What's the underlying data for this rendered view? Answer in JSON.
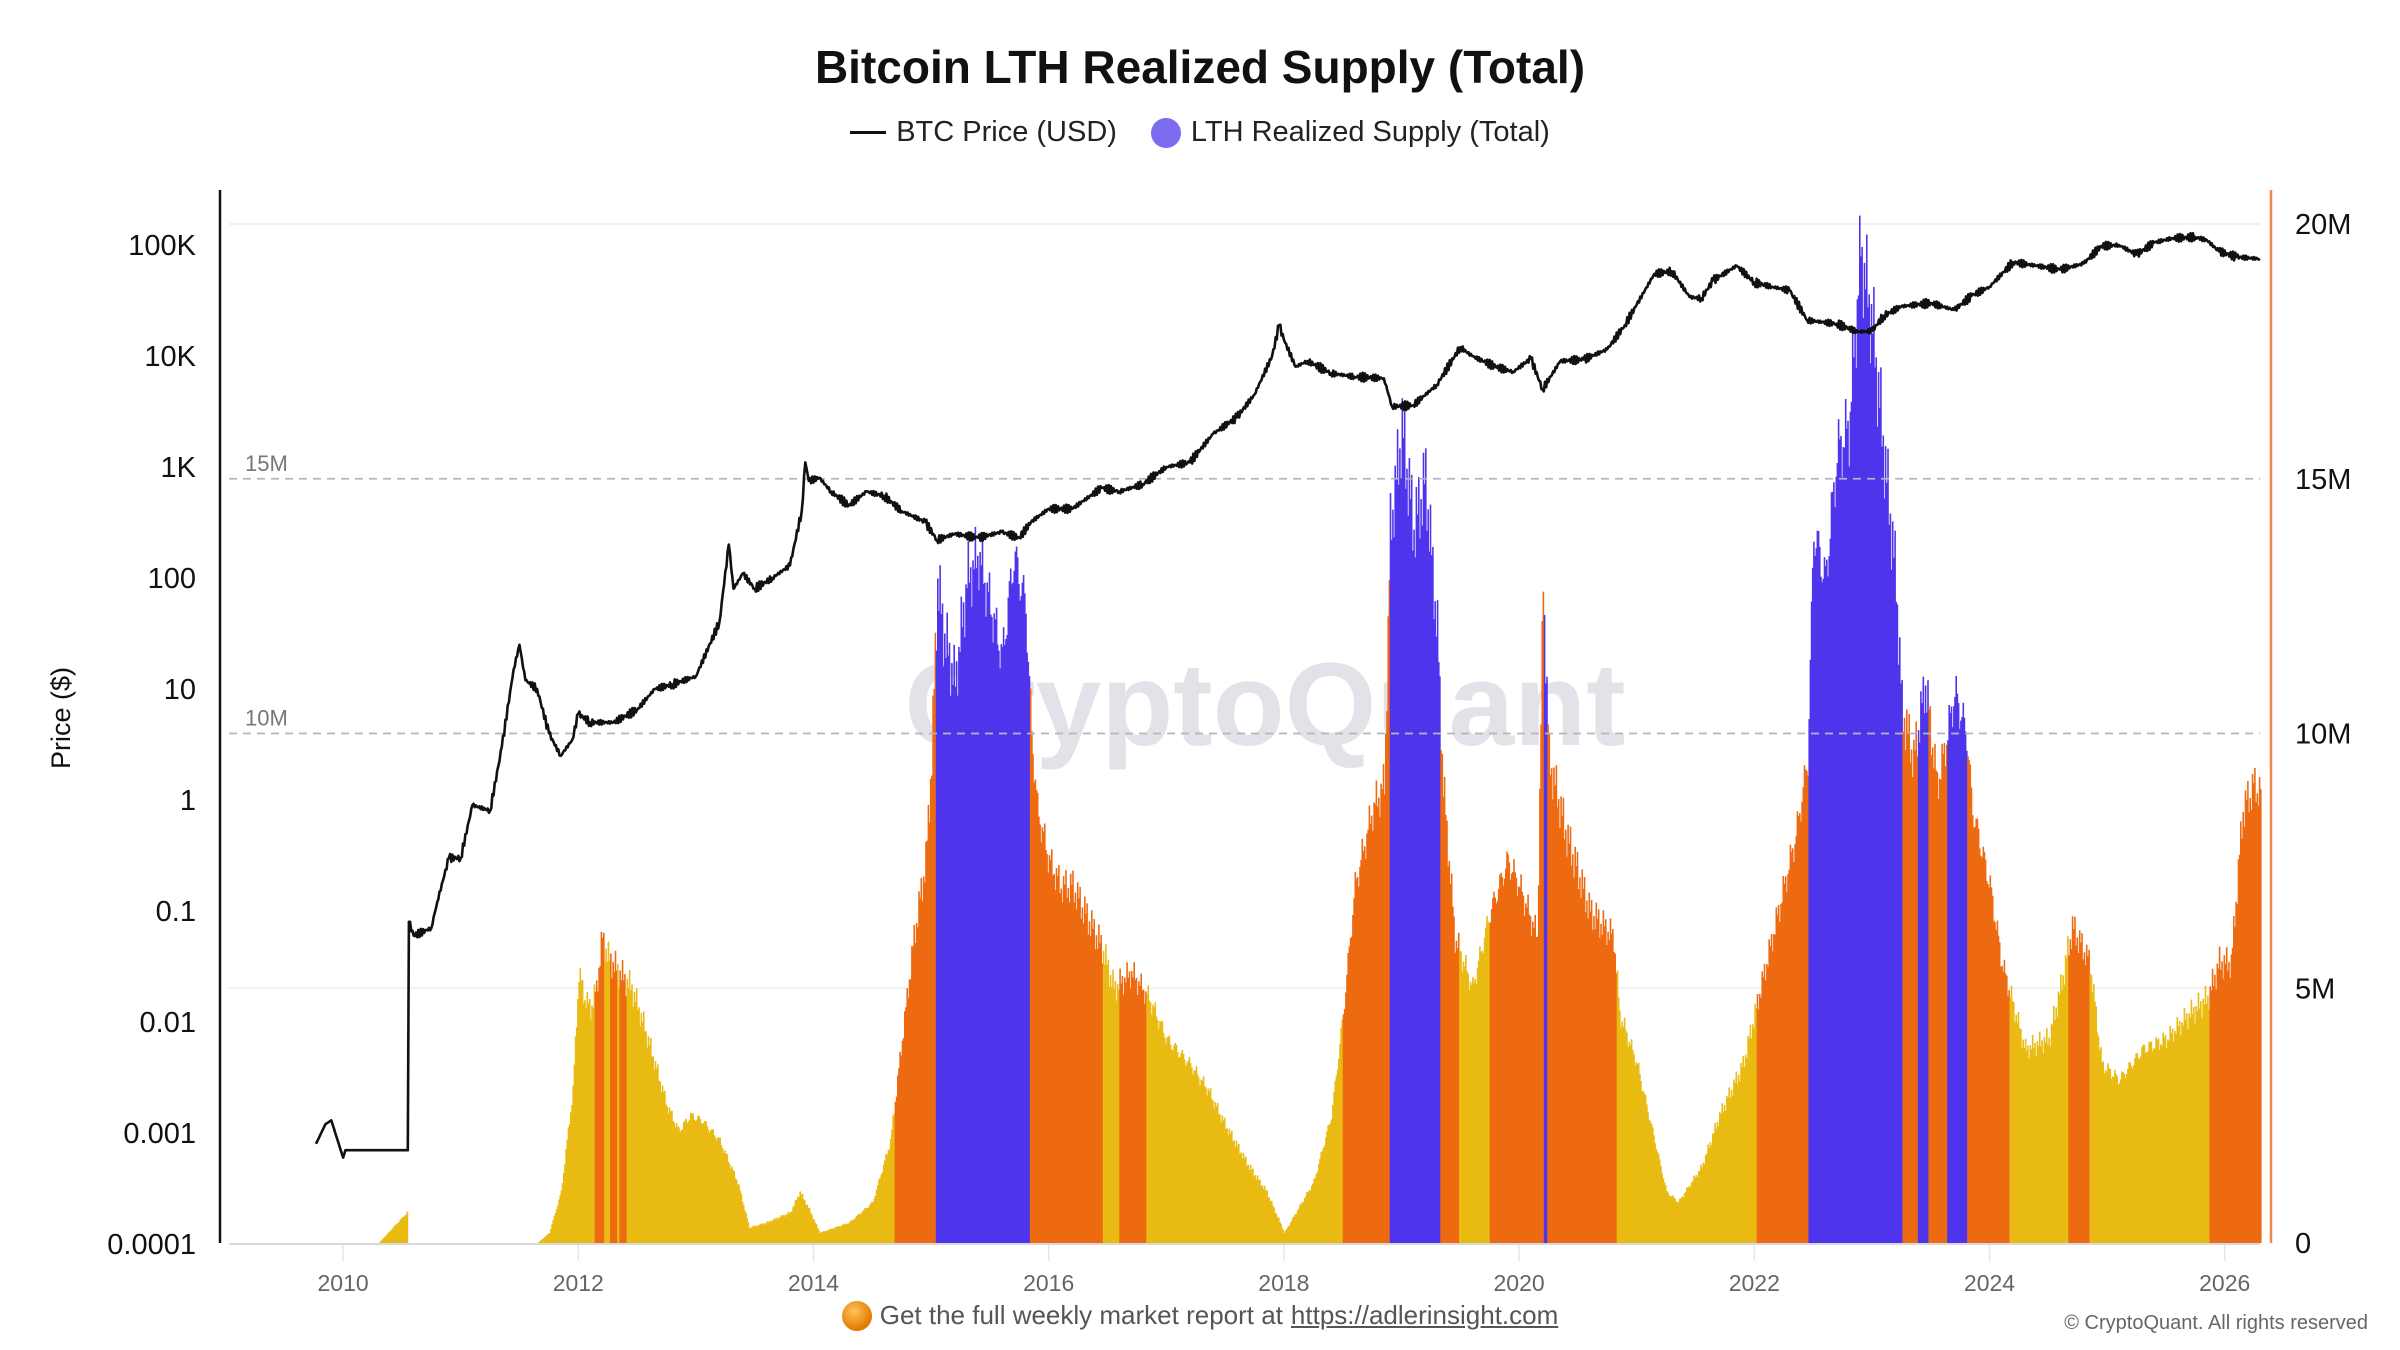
{
  "chart_data": {
    "type": "bar+line",
    "title": "Bitcoin LTH Realized Supply (Total)",
    "legend": [
      "BTC Price (USD)",
      "LTH Realized Supply (Total)"
    ],
    "legend_placement": "top-center",
    "ylabel_left": "Price ($)",
    "y_left_scale": "log",
    "y_left_ticks": [
      "0.0001",
      "0.001",
      "0.01",
      "0.1",
      "1",
      "10",
      "100",
      "1K",
      "10K",
      "100K"
    ],
    "y_left_tick_values": [
      0.0001,
      0.001,
      0.01,
      0.1,
      1,
      10,
      100,
      1000,
      10000,
      100000
    ],
    "y_right_ticks": [
      "0",
      "5M",
      "10M",
      "15M",
      "20M"
    ],
    "y_right_tick_values": [
      0,
      5,
      10,
      15,
      20
    ],
    "y_right_unit": "M",
    "ref_lines": [
      {
        "value": 15,
        "label": "15M"
      },
      {
        "value": 10,
        "label": "10M"
      }
    ],
    "x_ticks": [
      "2010",
      "2012",
      "2014",
      "2016",
      "2018",
      "2020",
      "2022",
      "2024",
      "2026"
    ],
    "x_tick_values": [
      2010,
      2012,
      2014,
      2016,
      2018,
      2020,
      2022,
      2024,
      2026
    ],
    "xlim": [
      2009.03,
      2026.3
    ],
    "grid": "horizontal",
    "colors": {
      "price": "#111111",
      "yellow": "#E9BB13",
      "orange": "#EE6A10",
      "blue": "#4E35EC",
      "right_axis": "#F08A4B"
    },
    "supply_series": {
      "name": "LTH Realized Supply (Total)",
      "unit": "M BTC",
      "points": [
        [
          2009.75,
          0
        ],
        [
          2010.3,
          0
        ],
        [
          2010.54,
          0.6
        ],
        [
          2010.55,
          0
        ],
        [
          2011.65,
          0
        ],
        [
          2011.75,
          0.2
        ],
        [
          2011.85,
          1.0
        ],
        [
          2011.95,
          3.0
        ],
        [
          2012.0,
          5.3
        ],
        [
          2012.05,
          4.8
        ],
        [
          2012.1,
          4.6
        ],
        [
          2012.15,
          5.0
        ],
        [
          2012.2,
          6.0
        ],
        [
          2012.25,
          5.6
        ],
        [
          2012.35,
          5.3
        ],
        [
          2012.45,
          5.0
        ],
        [
          2012.55,
          4.3
        ],
        [
          2012.65,
          3.5
        ],
        [
          2012.75,
          2.7
        ],
        [
          2012.85,
          2.2
        ],
        [
          2012.95,
          2.5
        ],
        [
          2013.05,
          2.4
        ],
        [
          2013.2,
          2.0
        ],
        [
          2013.35,
          1.2
        ],
        [
          2013.45,
          0.3
        ],
        [
          2013.6,
          0.4
        ],
        [
          2013.8,
          0.6
        ],
        [
          2013.88,
          1.0
        ],
        [
          2013.95,
          0.7
        ],
        [
          2014.05,
          0.2
        ],
        [
          2014.3,
          0.4
        ],
        [
          2014.5,
          0.8
        ],
        [
          2014.65,
          2.0
        ],
        [
          2014.75,
          4.0
        ],
        [
          2014.85,
          6.0
        ],
        [
          2014.95,
          7.5
        ],
        [
          2015.0,
          9.5
        ],
        [
          2015.05,
          13
        ],
        [
          2015.1,
          12
        ],
        [
          2015.2,
          11
        ],
        [
          2015.3,
          13
        ],
        [
          2015.4,
          13.5
        ],
        [
          2015.5,
          12.5
        ],
        [
          2015.6,
          11.5
        ],
        [
          2015.7,
          13.5
        ],
        [
          2015.8,
          12.5
        ],
        [
          2015.85,
          10
        ],
        [
          2015.9,
          8.5
        ],
        [
          2016.0,
          7.5
        ],
        [
          2016.1,
          7.0
        ],
        [
          2016.2,
          7.0
        ],
        [
          2016.3,
          6.5
        ],
        [
          2016.45,
          5.8
        ],
        [
          2016.55,
          5.0
        ],
        [
          2016.7,
          5.3
        ],
        [
          2016.85,
          4.8
        ],
        [
          2017.0,
          4.0
        ],
        [
          2017.2,
          3.5
        ],
        [
          2017.35,
          3.0
        ],
        [
          2017.5,
          2.3
        ],
        [
          2017.7,
          1.5
        ],
        [
          2017.85,
          1.0
        ],
        [
          2018.0,
          0.2
        ],
        [
          2018.1,
          0.6
        ],
        [
          2018.25,
          1.2
        ],
        [
          2018.4,
          2.5
        ],
        [
          2018.5,
          4.5
        ],
        [
          2018.6,
          7.0
        ],
        [
          2018.75,
          8.5
        ],
        [
          2018.85,
          9.0
        ],
        [
          2018.9,
          14
        ],
        [
          2019.0,
          16
        ],
        [
          2019.1,
          14
        ],
        [
          2019.2,
          15
        ],
        [
          2019.3,
          12
        ],
        [
          2019.35,
          9
        ],
        [
          2019.45,
          6
        ],
        [
          2019.6,
          5
        ],
        [
          2019.75,
          6.5
        ],
        [
          2019.9,
          7.5
        ],
        [
          2020.0,
          7.0
        ],
        [
          2020.15,
          6.0
        ],
        [
          2020.2,
          13
        ],
        [
          2020.25,
          9.5
        ],
        [
          2020.4,
          8.0
        ],
        [
          2020.6,
          6.5
        ],
        [
          2020.8,
          6.0
        ],
        [
          2020.85,
          4.5
        ],
        [
          2021.0,
          3.5
        ],
        [
          2021.15,
          2.0
        ],
        [
          2021.25,
          1.0
        ],
        [
          2021.35,
          0.8
        ],
        [
          2021.55,
          1.5
        ],
        [
          2021.7,
          2.5
        ],
        [
          2021.9,
          3.5
        ],
        [
          2022.0,
          4.5
        ],
        [
          2022.2,
          6.5
        ],
        [
          2022.35,
          8.0
        ],
        [
          2022.45,
          9.5
        ],
        [
          2022.5,
          14
        ],
        [
          2022.6,
          13
        ],
        [
          2022.7,
          15.5
        ],
        [
          2022.8,
          16
        ],
        [
          2022.9,
          19.5
        ],
        [
          2023.0,
          18
        ],
        [
          2023.1,
          15.5
        ],
        [
          2023.2,
          13
        ],
        [
          2023.25,
          10.5
        ],
        [
          2023.35,
          9.5
        ],
        [
          2023.45,
          11
        ],
        [
          2023.55,
          9
        ],
        [
          2023.6,
          9.5
        ],
        [
          2023.7,
          10.8
        ],
        [
          2023.8,
          10
        ],
        [
          2023.85,
          8.5
        ],
        [
          2024.0,
          7.0
        ],
        [
          2024.1,
          5.5
        ],
        [
          2024.3,
          3.8
        ],
        [
          2024.5,
          4.0
        ],
        [
          2024.6,
          5.0
        ],
        [
          2024.7,
          6.2
        ],
        [
          2024.85,
          5.5
        ],
        [
          2024.95,
          3.5
        ],
        [
          2025.1,
          3.2
        ],
        [
          2025.3,
          3.8
        ],
        [
          2025.5,
          4.0
        ],
        [
          2025.7,
          4.5
        ],
        [
          2025.85,
          4.8
        ],
        [
          2025.95,
          5.5
        ],
        [
          2026.05,
          5.5
        ],
        [
          2026.15,
          8.5
        ],
        [
          2026.25,
          9.0
        ],
        [
          2026.3,
          8.8
        ]
      ]
    },
    "color_segments_default": "yellow",
    "color_segments": [
      {
        "from": 2012.13,
        "to": 2012.21,
        "color": "orange"
      },
      {
        "from": 2012.26,
        "to": 2012.32,
        "color": "orange"
      },
      {
        "from": 2012.34,
        "to": 2012.4,
        "color": "orange"
      },
      {
        "from": 2014.68,
        "to": 2015.03,
        "color": "orange"
      },
      {
        "from": 2015.03,
        "to": 2015.83,
        "color": "blue"
      },
      {
        "from": 2015.83,
        "to": 2016.45,
        "color": "orange"
      },
      {
        "from": 2016.59,
        "to": 2016.82,
        "color": "orange"
      },
      {
        "from": 2018.49,
        "to": 2018.89,
        "color": "orange"
      },
      {
        "from": 2018.89,
        "to": 2019.32,
        "color": "blue"
      },
      {
        "from": 2019.32,
        "to": 2019.48,
        "color": "orange"
      },
      {
        "from": 2019.74,
        "to": 2020.2,
        "color": "orange"
      },
      {
        "from": 2020.2,
        "to": 2020.23,
        "color": "blue"
      },
      {
        "from": 2020.23,
        "to": 2020.82,
        "color": "orange"
      },
      {
        "from": 2022.01,
        "to": 2022.45,
        "color": "orange"
      },
      {
        "from": 2022.45,
        "to": 2023.25,
        "color": "blue"
      },
      {
        "from": 2023.25,
        "to": 2023.38,
        "color": "orange"
      },
      {
        "from": 2023.38,
        "to": 2023.47,
        "color": "blue"
      },
      {
        "from": 2023.47,
        "to": 2023.63,
        "color": "orange"
      },
      {
        "from": 2023.63,
        "to": 2023.8,
        "color": "blue"
      },
      {
        "from": 2023.8,
        "to": 2024.16,
        "color": "orange"
      },
      {
        "from": 2024.66,
        "to": 2024.84,
        "color": "orange"
      },
      {
        "from": 2025.86,
        "to": 2026.3,
        "color": "orange"
      }
    ],
    "price_series": {
      "name": "BTC Price (USD)",
      "points": [
        [
          2009.77,
          0.0008
        ],
        [
          2009.85,
          0.0012
        ],
        [
          2009.9,
          0.0013
        ],
        [
          2010.0,
          0.0006
        ],
        [
          2010.02,
          0.0007
        ],
        [
          2010.55,
          0.0007
        ],
        [
          2010.56,
          0.08
        ],
        [
          2010.6,
          0.06
        ],
        [
          2010.75,
          0.07
        ],
        [
          2010.8,
          0.12
        ],
        [
          2010.9,
          0.3
        ],
        [
          2011.0,
          0.3
        ],
        [
          2011.1,
          0.9
        ],
        [
          2011.25,
          0.8
        ],
        [
          2011.35,
          3
        ],
        [
          2011.45,
          15
        ],
        [
          2011.5,
          25
        ],
        [
          2011.55,
          12
        ],
        [
          2011.65,
          10
        ],
        [
          2011.75,
          4
        ],
        [
          2011.85,
          2.5
        ],
        [
          2011.95,
          3.5
        ],
        [
          2012.0,
          6
        ],
        [
          2012.1,
          5
        ],
        [
          2012.3,
          5
        ],
        [
          2012.5,
          6.5
        ],
        [
          2012.65,
          10
        ],
        [
          2012.8,
          11
        ],
        [
          2013.0,
          13
        ],
        [
          2013.2,
          40
        ],
        [
          2013.28,
          200
        ],
        [
          2013.32,
          80
        ],
        [
          2013.4,
          110
        ],
        [
          2013.5,
          80
        ],
        [
          2013.65,
          100
        ],
        [
          2013.8,
          130
        ],
        [
          2013.9,
          400
        ],
        [
          2013.93,
          1100
        ],
        [
          2013.96,
          750
        ],
        [
          2014.05,
          800
        ],
        [
          2014.15,
          600
        ],
        [
          2014.3,
          450
        ],
        [
          2014.45,
          600
        ],
        [
          2014.6,
          550
        ],
        [
          2014.75,
          400
        ],
        [
          2014.95,
          320
        ],
        [
          2015.05,
          220
        ],
        [
          2015.2,
          250
        ],
        [
          2015.4,
          230
        ],
        [
          2015.6,
          260
        ],
        [
          2015.75,
          230
        ],
        [
          2015.85,
          320
        ],
        [
          2016.0,
          420
        ],
        [
          2016.2,
          420
        ],
        [
          2016.45,
          650
        ],
        [
          2016.6,
          600
        ],
        [
          2016.8,
          700
        ],
        [
          2017.0,
          1000
        ],
        [
          2017.2,
          1100
        ],
        [
          2017.4,
          2000
        ],
        [
          2017.6,
          2800
        ],
        [
          2017.75,
          4500
        ],
        [
          2017.9,
          10000
        ],
        [
          2017.96,
          19000
        ],
        [
          2018.0,
          14000
        ],
        [
          2018.1,
          8000
        ],
        [
          2018.2,
          9000
        ],
        [
          2018.4,
          7000
        ],
        [
          2018.6,
          6500
        ],
        [
          2018.85,
          6300
        ],
        [
          2018.92,
          3500
        ],
        [
          2019.1,
          3600
        ],
        [
          2019.3,
          5500
        ],
        [
          2019.5,
          12000
        ],
        [
          2019.6,
          10000
        ],
        [
          2019.8,
          8000
        ],
        [
          2019.95,
          7200
        ],
        [
          2020.1,
          9500
        ],
        [
          2020.2,
          5000
        ],
        [
          2020.35,
          9000
        ],
        [
          2020.55,
          9300
        ],
        [
          2020.75,
          11500
        ],
        [
          2020.9,
          19000
        ],
        [
          2021.0,
          29000
        ],
        [
          2021.15,
          55000
        ],
        [
          2021.3,
          58000
        ],
        [
          2021.45,
          34000
        ],
        [
          2021.55,
          33000
        ],
        [
          2021.65,
          48000
        ],
        [
          2021.85,
          65000
        ],
        [
          2022.0,
          46000
        ],
        [
          2022.15,
          42000
        ],
        [
          2022.3,
          39000
        ],
        [
          2022.45,
          21000
        ],
        [
          2022.7,
          19500
        ],
        [
          2022.88,
          16500
        ],
        [
          2023.0,
          16800
        ],
        [
          2023.1,
          23000
        ],
        [
          2023.25,
          28000
        ],
        [
          2023.5,
          30000
        ],
        [
          2023.7,
          26000
        ],
        [
          2023.85,
          35000
        ],
        [
          2024.0,
          42000
        ],
        [
          2024.2,
          70000
        ],
        [
          2024.4,
          65000
        ],
        [
          2024.6,
          60000
        ],
        [
          2024.8,
          68000
        ],
        [
          2024.95,
          98000
        ],
        [
          2025.1,
          100000
        ],
        [
          2025.25,
          82000
        ],
        [
          2025.4,
          105000
        ],
        [
          2025.55,
          115000
        ],
        [
          2025.75,
          118000
        ],
        [
          2025.85,
          110000
        ],
        [
          2025.95,
          88000
        ],
        [
          2026.1,
          78000
        ],
        [
          2026.3,
          75000
        ]
      ]
    },
    "watermark": "CryptoQuant"
  },
  "footer": {
    "text": "Get the full weekly market report at",
    "link": "https://adlerinsight.com",
    "copyright": "© CryptoQuant. All rights reserved"
  }
}
